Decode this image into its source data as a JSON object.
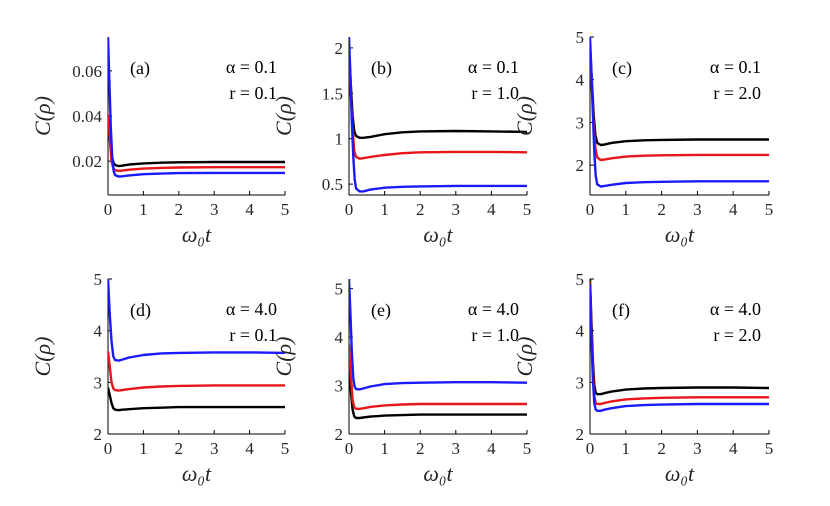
{
  "colors": {
    "black": "#000000",
    "red": "#e8161b",
    "blue": "#1a1aff"
  },
  "chart_data": [
    {
      "type": "line",
      "panel": "(a)",
      "alpha_text": "α = 0.1",
      "r_text": "r = 0.1",
      "ylabel": "C(ρ)",
      "xlabel": "ω₀t",
      "xlim": [
        0,
        5
      ],
      "ylim": [
        0.005,
        0.075
      ],
      "xticks": [
        0,
        1,
        2,
        3,
        4,
        5
      ],
      "xtick_labels": [
        "0",
        "1",
        "2",
        "3",
        "4",
        "5"
      ],
      "yticks": [
        0.02,
        0.04,
        0.06
      ],
      "ytick_labels": [
        "0.02",
        "0.04",
        "0.06"
      ],
      "series": [
        {
          "name": "black",
          "color": "#000000",
          "x": [
            0,
            0.05,
            0.1,
            0.15,
            0.2,
            0.3,
            0.4,
            0.6,
            1,
            1.5,
            2,
            3,
            4,
            5
          ],
          "y": [
            0.037,
            0.03,
            0.023,
            0.0195,
            0.0183,
            0.0178,
            0.018,
            0.0185,
            0.019,
            0.0193,
            0.0195,
            0.0196,
            0.0196,
            0.0196
          ]
        },
        {
          "name": "red",
          "color": "#e8161b",
          "x": [
            0,
            0.05,
            0.1,
            0.15,
            0.2,
            0.3,
            0.4,
            0.6,
            1,
            1.5,
            2,
            3,
            4,
            5
          ],
          "y": [
            0.04,
            0.03,
            0.02,
            0.0168,
            0.016,
            0.0157,
            0.0158,
            0.0162,
            0.0167,
            0.017,
            0.0172,
            0.0173,
            0.0173,
            0.0173
          ]
        },
        {
          "name": "blue",
          "color": "#1a1aff",
          "x": [
            0,
            0.04,
            0.08,
            0.12,
            0.16,
            0.2,
            0.3,
            0.4,
            0.6,
            1,
            1.5,
            2,
            3,
            4,
            5
          ],
          "y": [
            0.075,
            0.055,
            0.035,
            0.022,
            0.0155,
            0.0138,
            0.0132,
            0.0133,
            0.0137,
            0.0142,
            0.0145,
            0.0147,
            0.0148,
            0.0148,
            0.0148
          ]
        }
      ]
    },
    {
      "type": "line",
      "panel": "(b)",
      "alpha_text": "α = 0.1",
      "r_text": "r = 1.0",
      "ylabel": "C(ρ)",
      "xlabel": "ω₀t",
      "xlim": [
        0,
        5
      ],
      "ylim": [
        0.38,
        2.12
      ],
      "xticks": [
        0,
        1,
        2,
        3,
        4,
        5
      ],
      "xtick_labels": [
        "0",
        "1",
        "2",
        "3",
        "4",
        "5"
      ],
      "yticks": [
        0.5,
        1,
        1.5,
        2
      ],
      "ytick_labels": [
        "0.5",
        "1",
        "1.5",
        "2"
      ],
      "series": [
        {
          "name": "black",
          "color": "#000000",
          "x": [
            0,
            0.05,
            0.1,
            0.15,
            0.2,
            0.3,
            0.4,
            0.6,
            1,
            1.5,
            2,
            3,
            4,
            5
          ],
          "y": [
            1.95,
            1.6,
            1.25,
            1.08,
            1.03,
            1.01,
            1.01,
            1.02,
            1.05,
            1.07,
            1.08,
            1.085,
            1.08,
            1.075
          ]
        },
        {
          "name": "red",
          "color": "#e8161b",
          "x": [
            0,
            0.05,
            0.1,
            0.15,
            0.2,
            0.3,
            0.4,
            0.6,
            1,
            1.5,
            2,
            3,
            4,
            5
          ],
          "y": [
            1.92,
            1.5,
            1.1,
            0.86,
            0.8,
            0.78,
            0.785,
            0.8,
            0.82,
            0.84,
            0.85,
            0.855,
            0.855,
            0.85
          ]
        },
        {
          "name": "blue",
          "color": "#1a1aff",
          "x": [
            0,
            0.04,
            0.08,
            0.12,
            0.16,
            0.2,
            0.3,
            0.4,
            0.6,
            1,
            1.5,
            2,
            3,
            4,
            5
          ],
          "y": [
            2.12,
            1.7,
            1.2,
            0.8,
            0.55,
            0.45,
            0.42,
            0.42,
            0.44,
            0.46,
            0.47,
            0.475,
            0.48,
            0.48,
            0.48
          ]
        }
      ]
    },
    {
      "type": "line",
      "panel": "(c)",
      "alpha_text": "α = 0.1",
      "r_text": "r = 2.0",
      "ylabel": "C(ρ)",
      "xlabel": "ω₀t",
      "xlim": [
        0,
        5
      ],
      "ylim": [
        1.3,
        5
      ],
      "xticks": [
        0,
        1,
        2,
        3,
        4,
        5
      ],
      "xtick_labels": [
        "0",
        "1",
        "2",
        "3",
        "4",
        "5"
      ],
      "yticks": [
        2,
        3,
        4,
        5
      ],
      "ytick_labels": [
        "2",
        "3",
        "4",
        "5"
      ],
      "series": [
        {
          "name": "black",
          "color": "#000000",
          "x": [
            0,
            0.05,
            0.1,
            0.15,
            0.2,
            0.3,
            0.4,
            0.6,
            1,
            1.5,
            2,
            3,
            4,
            5
          ],
          "y": [
            4.8,
            4,
            3.2,
            2.7,
            2.52,
            2.47,
            2.48,
            2.52,
            2.56,
            2.58,
            2.59,
            2.6,
            2.6,
            2.6
          ]
        },
        {
          "name": "red",
          "color": "#e8161b",
          "x": [
            0,
            0.05,
            0.1,
            0.15,
            0.2,
            0.3,
            0.4,
            0.6,
            1,
            1.5,
            2,
            3,
            4,
            5
          ],
          "y": [
            4.6,
            3.8,
            3,
            2.4,
            2.18,
            2.12,
            2.13,
            2.16,
            2.2,
            2.22,
            2.23,
            2.24,
            2.24,
            2.24
          ]
        },
        {
          "name": "blue",
          "color": "#1a1aff",
          "x": [
            0,
            0.04,
            0.08,
            0.12,
            0.16,
            0.2,
            0.3,
            0.4,
            0.6,
            1,
            1.5,
            2,
            3,
            4,
            5
          ],
          "y": [
            5,
            4.2,
            3.2,
            2.3,
            1.75,
            1.55,
            1.5,
            1.51,
            1.54,
            1.58,
            1.6,
            1.61,
            1.62,
            1.62,
            1.62
          ]
        }
      ]
    },
    {
      "type": "line",
      "panel": "(d)",
      "alpha_text": "α = 4.0",
      "r_text": "r = 0.1",
      "ylabel": "C(ρ)",
      "xlabel": "ω₀t",
      "xlim": [
        0,
        5
      ],
      "ylim": [
        2,
        5
      ],
      "xticks": [
        0,
        1,
        2,
        3,
        4,
        5
      ],
      "xtick_labels": [
        "0",
        "1",
        "2",
        "3",
        "4",
        "5"
      ],
      "yticks": [
        2,
        3,
        4,
        5
      ],
      "ytick_labels": [
        "2",
        "3",
        "4",
        "5"
      ],
      "series": [
        {
          "name": "black",
          "color": "#000000",
          "x": [
            0,
            0.05,
            0.1,
            0.15,
            0.2,
            0.3,
            0.4,
            0.6,
            1,
            1.5,
            2,
            3,
            4,
            5
          ],
          "y": [
            2.9,
            2.75,
            2.6,
            2.5,
            2.47,
            2.46,
            2.47,
            2.48,
            2.5,
            2.51,
            2.52,
            2.52,
            2.52,
            2.52
          ]
        },
        {
          "name": "red",
          "color": "#e8161b",
          "x": [
            0,
            0.05,
            0.1,
            0.15,
            0.2,
            0.3,
            0.4,
            0.6,
            1,
            1.5,
            2,
            3,
            4,
            5
          ],
          "y": [
            3.6,
            3.3,
            3,
            2.88,
            2.85,
            2.84,
            2.85,
            2.87,
            2.9,
            2.92,
            2.93,
            2.94,
            2.94,
            2.94
          ]
        },
        {
          "name": "blue",
          "color": "#1a1aff",
          "x": [
            0,
            0.05,
            0.1,
            0.15,
            0.2,
            0.3,
            0.4,
            0.6,
            1,
            1.5,
            2,
            3,
            4,
            5
          ],
          "y": [
            5,
            4.3,
            3.8,
            3.5,
            3.43,
            3.42,
            3.44,
            3.48,
            3.53,
            3.56,
            3.57,
            3.58,
            3.58,
            3.57
          ]
        }
      ]
    },
    {
      "type": "line",
      "panel": "(e)",
      "alpha_text": "α = 4.0",
      "r_text": "r = 1.0",
      "ylabel": "C(ρ)",
      "xlabel": "ω₀t",
      "xlim": [
        0,
        5
      ],
      "ylim": [
        2,
        5.2
      ],
      "xticks": [
        0,
        1,
        2,
        3,
        4,
        5
      ],
      "xtick_labels": [
        "0",
        "1",
        "2",
        "3",
        "4",
        "5"
      ],
      "yticks": [
        2,
        3,
        4,
        5
      ],
      "ytick_labels": [
        "2",
        "3",
        "4",
        "5"
      ],
      "series": [
        {
          "name": "black",
          "color": "#000000",
          "x": [
            0,
            0.05,
            0.1,
            0.15,
            0.2,
            0.3,
            0.4,
            0.6,
            1,
            1.5,
            2,
            3,
            4,
            5
          ],
          "y": [
            3.4,
            2.9,
            2.5,
            2.36,
            2.33,
            2.33,
            2.34,
            2.36,
            2.38,
            2.39,
            2.4,
            2.4,
            2.4,
            2.4
          ]
        },
        {
          "name": "red",
          "color": "#e8161b",
          "x": [
            0,
            0.05,
            0.1,
            0.15,
            0.2,
            0.3,
            0.4,
            0.6,
            1,
            1.5,
            2,
            3,
            4,
            5
          ],
          "y": [
            3.85,
            3.2,
            2.7,
            2.55,
            2.52,
            2.52,
            2.53,
            2.56,
            2.59,
            2.61,
            2.62,
            2.62,
            2.62,
            2.62
          ]
        },
        {
          "name": "blue",
          "color": "#1a1aff",
          "x": [
            0,
            0.04,
            0.08,
            0.12,
            0.16,
            0.2,
            0.3,
            0.4,
            0.6,
            1,
            1.5,
            2,
            3,
            4,
            5
          ],
          "y": [
            5.2,
            4.5,
            3.7,
            3.15,
            2.97,
            2.93,
            2.92,
            2.94,
            2.98,
            3.03,
            3.05,
            3.06,
            3.07,
            3.07,
            3.06
          ]
        }
      ]
    },
    {
      "type": "line",
      "panel": "(f)",
      "alpha_text": "α = 4.0",
      "r_text": "r = 2.0",
      "ylabel": "C(ρ)",
      "xlabel": "ω₀t",
      "xlim": [
        0,
        5
      ],
      "ylim": [
        2,
        5
      ],
      "xticks": [
        0,
        1,
        2,
        3,
        4,
        5
      ],
      "xtick_labels": [
        "0",
        "1",
        "2",
        "3",
        "4",
        "5"
      ],
      "yticks": [
        2,
        3,
        4,
        5
      ],
      "ytick_labels": [
        "2",
        "3",
        "4",
        "5"
      ],
      "series": [
        {
          "name": "black",
          "color": "#000000",
          "x": [
            0,
            0.04,
            0.08,
            0.12,
            0.16,
            0.2,
            0.3,
            0.4,
            0.6,
            1,
            1.5,
            2,
            3,
            4,
            5
          ],
          "y": [
            5,
            4.2,
            3.4,
            2.95,
            2.8,
            2.77,
            2.77,
            2.79,
            2.82,
            2.86,
            2.88,
            2.89,
            2.9,
            2.9,
            2.89
          ]
        },
        {
          "name": "red",
          "color": "#e8161b",
          "x": [
            0,
            0.04,
            0.08,
            0.12,
            0.16,
            0.2,
            0.3,
            0.4,
            0.6,
            1,
            1.5,
            2,
            3,
            4,
            5
          ],
          "y": [
            4.95,
            4,
            3.2,
            2.75,
            2.6,
            2.58,
            2.58,
            2.6,
            2.63,
            2.67,
            2.69,
            2.7,
            2.71,
            2.71,
            2.71
          ]
        },
        {
          "name": "blue",
          "color": "#1a1aff",
          "x": [
            0,
            0.04,
            0.08,
            0.12,
            0.16,
            0.2,
            0.3,
            0.4,
            0.6,
            1,
            1.5,
            2,
            3,
            4,
            5
          ],
          "y": [
            4.9,
            3.9,
            3.05,
            2.6,
            2.47,
            2.45,
            2.45,
            2.47,
            2.5,
            2.54,
            2.56,
            2.57,
            2.58,
            2.58,
            2.58
          ]
        }
      ]
    }
  ]
}
